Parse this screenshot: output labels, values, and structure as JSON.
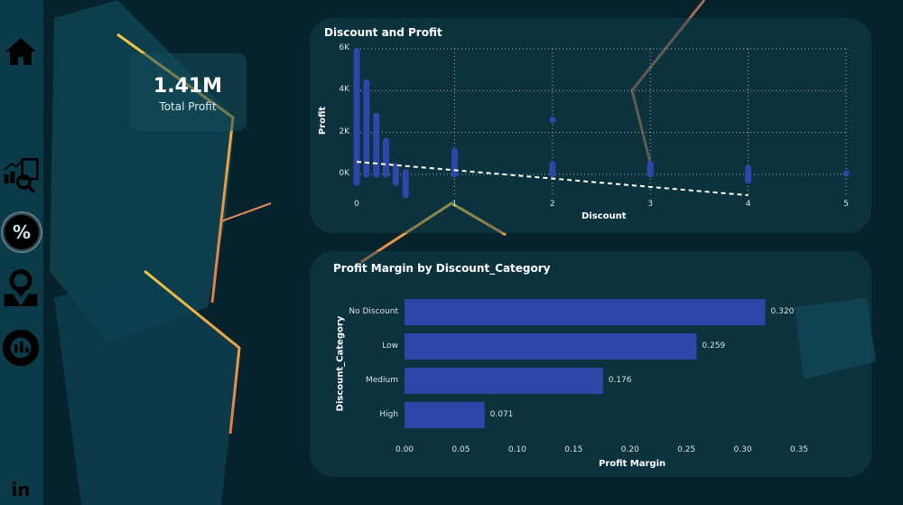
{
  "kpi": {
    "value": "1.41M",
    "label": "Total Profit"
  },
  "nav": [
    "home-icon",
    "analytics-report-icon",
    "discount-badge-icon",
    "location-map-icon",
    "donut-chart-icon",
    "linkedin-icon"
  ],
  "linkedin": "in",
  "chart_data": [
    {
      "type": "scatter",
      "title": "Discount and Profit",
      "xlabel": "Discount",
      "ylabel": "Profit",
      "xlim": [
        0,
        5
      ],
      "ylim": [
        -1000,
        6000
      ],
      "xticks": [
        "0",
        "1",
        "2",
        "3",
        "4",
        "5"
      ],
      "yticks": [
        "0K",
        "2K",
        "4K",
        "6K"
      ],
      "ytick_values": [
        0,
        2000,
        4000,
        6000
      ],
      "grid": true,
      "point_color": "#2f45a8",
      "point_ranges": [
        {
          "x": 0,
          "ymin": -400,
          "ymax": 5900
        },
        {
          "x": 0.1,
          "ymin": 0,
          "ymax": 4400
        },
        {
          "x": 0.2,
          "ymin": 0,
          "ymax": 2800
        },
        {
          "x": 0.3,
          "ymin": 0,
          "ymax": 1600
        },
        {
          "x": 0.4,
          "ymin": -400,
          "ymax": 400
        },
        {
          "x": 0.5,
          "ymin": -1000,
          "ymax": 100
        },
        {
          "x": 1,
          "ymin": 0,
          "ymax": 1100
        },
        {
          "x": 2,
          "ymin": 0,
          "ymax": 500
        },
        {
          "x": 2,
          "ymin": 2600,
          "ymax": 2600
        },
        {
          "x": 3,
          "ymin": 0,
          "ymax": 500
        },
        {
          "x": 4,
          "ymin": -300,
          "ymax": 300
        },
        {
          "x": 5,
          "ymin": 50,
          "ymax": 50
        }
      ],
      "trend_line": [
        [
          0,
          600
        ],
        [
          4,
          -1000
        ]
      ]
    },
    {
      "type": "bar",
      "title": "Profit Margin by Discount_Category",
      "xlabel": "Profit Margin",
      "ylabel": "Discount_Category",
      "categories": [
        "No Discount",
        "Low",
        "Medium",
        "High"
      ],
      "values": [
        0.32,
        0.259,
        0.176,
        0.071
      ],
      "labels": [
        "0.320",
        "0.259",
        "0.176",
        "0.071"
      ],
      "xlim": [
        0,
        0.35
      ],
      "xticks": [
        "0.00",
        "0.05",
        "0.10",
        "0.15",
        "0.20",
        "0.25",
        "0.30",
        "0.35"
      ],
      "bar_color": "#2f45a8"
    }
  ]
}
